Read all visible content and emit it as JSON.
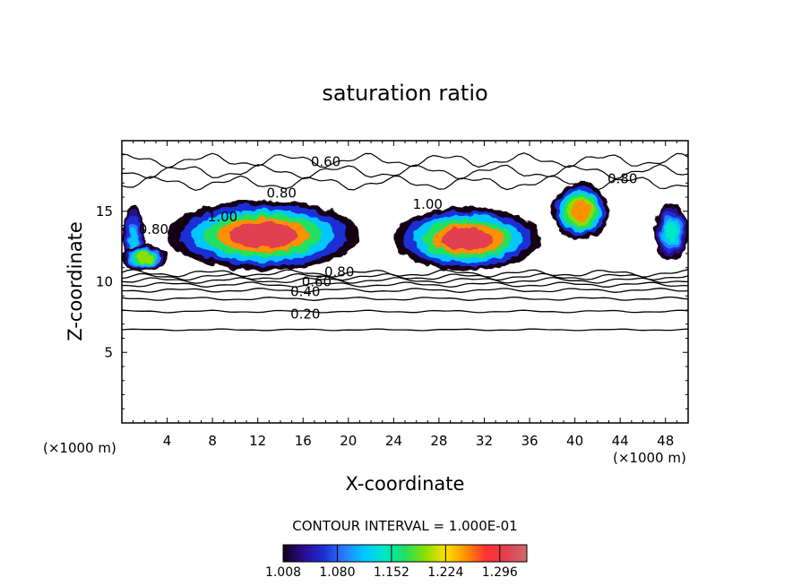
{
  "chart_data": {
    "type": "heatmap",
    "title": "saturation ratio",
    "xlabel": "X-coordinate",
    "ylabel": "Z-coordinate",
    "x_unit_left": "(×1000 m)",
    "x_unit_right": "(×1000 m)",
    "xlim": [
      0,
      50
    ],
    "ylim": [
      0,
      20
    ],
    "x_ticks": [
      4,
      8,
      12,
      16,
      20,
      24,
      28,
      32,
      36,
      40,
      44,
      48
    ],
    "x_tick_labels": [
      "4",
      "8",
      "12",
      "16",
      "20",
      "24",
      "28",
      "32",
      "36",
      "40",
      "44",
      "48"
    ],
    "y_ticks": [
      5,
      10,
      15
    ],
    "y_tick_labels": [
      "5",
      "10",
      "15"
    ],
    "contour_interval_text": "CONTOUR INTERVAL = 1.000E-01",
    "contour_lines": [
      {
        "level": 0.1,
        "z": 6.6
      },
      {
        "level": 0.2,
        "z": 7.9
      },
      {
        "level": 0.3,
        "z": 8.8
      },
      {
        "level": 0.4,
        "z": 9.4
      },
      {
        "level": 0.5,
        "z": 9.8
      },
      {
        "level": 0.6,
        "z": 10.1
      },
      {
        "level": 0.7,
        "z": 10.35
      },
      {
        "level": 0.8,
        "z": 10.6
      }
    ],
    "upper_contours": [
      {
        "level": 0.6,
        "z": 18.6
      },
      {
        "level": 0.7,
        "z": 17.8
      },
      {
        "level": 0.8,
        "z": 17.0
      }
    ],
    "contour_labels": [
      {
        "text": "0.20",
        "x": 16.2,
        "z": 7.7
      },
      {
        "text": "0.40",
        "x": 16.2,
        "z": 9.3
      },
      {
        "text": "0.60",
        "x": 17.2,
        "z": 10.0
      },
      {
        "text": "0.80",
        "x": 19.2,
        "z": 10.7
      },
      {
        "text": "0.60",
        "x": 18.0,
        "z": 18.5
      },
      {
        "text": "0.80",
        "x": 14.1,
        "z": 16.3
      },
      {
        "text": "0.80",
        "x": 44.2,
        "z": 17.3
      },
      {
        "text": "1.00",
        "x": 27.0,
        "z": 15.5
      },
      {
        "text": "1.00",
        "x": 8.9,
        "z": 14.6
      },
      {
        "text": "0.80",
        "x": 2.8,
        "z": 13.7
      }
    ],
    "supersaturated_regions": [
      {
        "x_min": 0,
        "x_max": 2,
        "z_min": 10.8,
        "z_max": 15.4,
        "peak": 1.12
      },
      {
        "x_min": 0,
        "x_max": 4,
        "z_min": 10.8,
        "z_max": 12.6,
        "peak": 1.2
      },
      {
        "x_min": 4,
        "x_max": 21,
        "z_min": 10.8,
        "z_max": 15.8,
        "peak": 1.3
      },
      {
        "x_min": 24,
        "x_max": 37,
        "z_min": 10.8,
        "z_max": 15.3,
        "peak": 1.3
      },
      {
        "x_min": 38,
        "x_max": 43,
        "z_min": 13.0,
        "z_max": 17.0,
        "peak": 1.26
      },
      {
        "x_min": 47,
        "x_max": 50,
        "z_min": 11.5,
        "z_max": 15.6,
        "peak": 1.15
      }
    ],
    "colorbar": {
      "min": 1.008,
      "max": 1.332,
      "tick_labels": [
        "1.008",
        "1.080",
        "1.152",
        "1.224",
        "1.296"
      ],
      "colors": [
        "#140018",
        "#2a0b8c",
        "#1b2fd6",
        "#2a7cff",
        "#00c8ff",
        "#00e8c8",
        "#20e060",
        "#8ae000",
        "#ffe000",
        "#ff9000",
        "#ff3030",
        "#e04050",
        "#d06a6a"
      ]
    },
    "grid": false
  }
}
